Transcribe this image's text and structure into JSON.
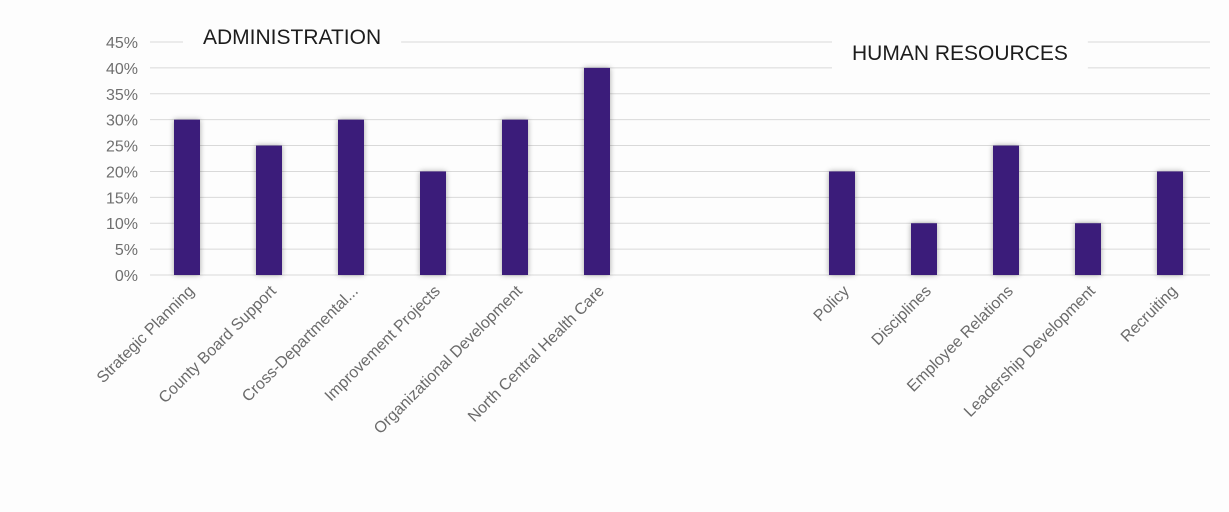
{
  "chart_data": {
    "type": "bar",
    "ylim": [
      0,
      45
    ],
    "y_unit": "%",
    "y_ticks": [
      "0%",
      "5%",
      "10%",
      "15%",
      "20%",
      "25%",
      "30%",
      "35%",
      "40%",
      "45%"
    ],
    "grid": true,
    "bar_color": "#3a1f7a",
    "sections": [
      {
        "title": "ADMINISTRATION",
        "categories": [
          "Strategic Planning",
          "County Board Support",
          "Cross-Departmental...",
          "Improvement Projects",
          "Organizational Development",
          "North Central Health Care"
        ],
        "values": [
          30,
          25,
          30,
          20,
          30,
          40
        ]
      },
      {
        "title": "HUMAN RESOURCES",
        "categories": [
          "Policy",
          "Disciplines",
          "Employee Relations",
          "Leadership Development",
          "Recruiting"
        ],
        "values": [
          20,
          10,
          25,
          10,
          20
        ]
      }
    ]
  }
}
